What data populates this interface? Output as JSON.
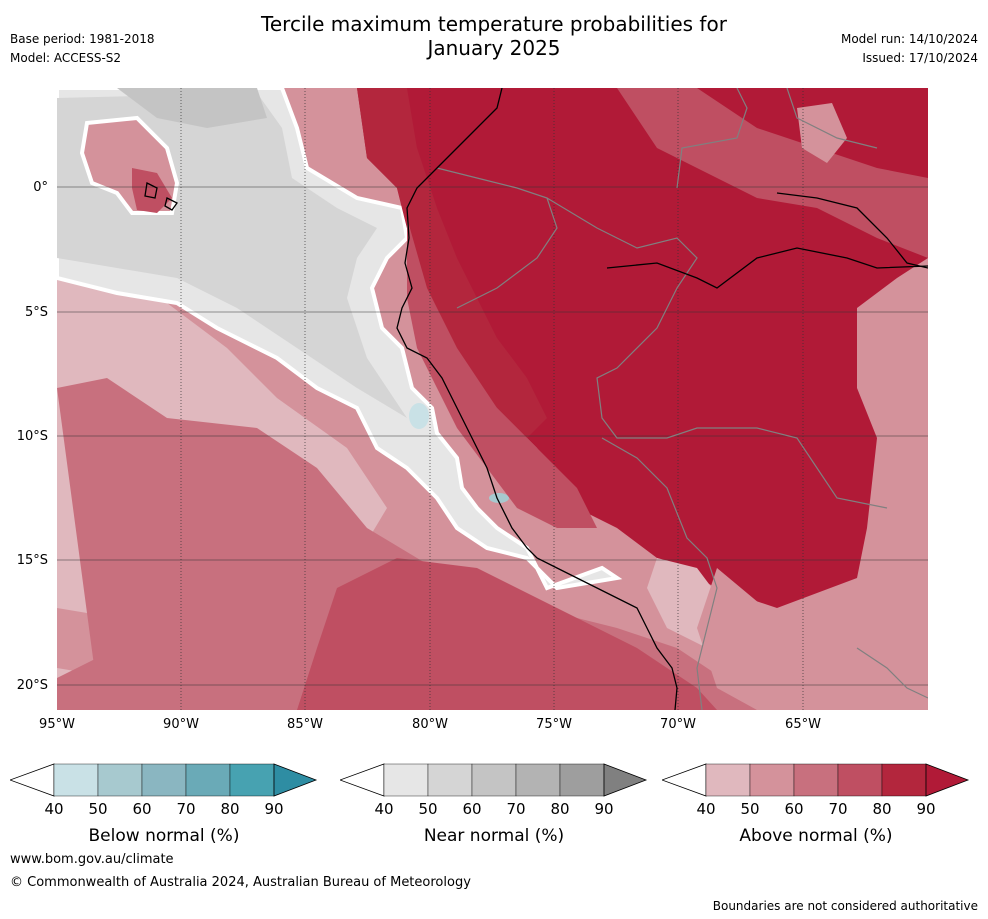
{
  "header": {
    "title_line1": "Tercile maximum temperature probabilities for",
    "title_line2": "January 2025",
    "base_period": "Base period: 1981-2018",
    "model": "Model: ACCESS-S2",
    "model_run": "Model run: 14/10/2024",
    "issued": "Issued: 17/10/2024"
  },
  "map": {
    "lat_labels": [
      "0°",
      "5°S",
      "10°S",
      "15°S",
      "20°S"
    ],
    "lon_labels": [
      "95°W",
      "90°W",
      "85°W",
      "80°W",
      "75°W",
      "70°W",
      "65°W"
    ],
    "coastline_color": "#000000",
    "border_color": "#808080"
  },
  "legends": [
    {
      "title": "Below normal (%)",
      "ticks": [
        "40",
        "50",
        "60",
        "70",
        "80",
        "90"
      ],
      "colors": [
        "#c9e1e6",
        "#a7c9cf",
        "#8ab6c1",
        "#6aaab7",
        "#47a2b1",
        "#2e8da3"
      ]
    },
    {
      "title": "Near normal (%)",
      "ticks": [
        "40",
        "50",
        "60",
        "70",
        "80",
        "90"
      ],
      "colors": [
        "#e6e6e6",
        "#d5d5d5",
        "#c4c4c4",
        "#b3b3b3",
        "#9e9e9e",
        "#808080"
      ]
    },
    {
      "title": "Above normal (%)",
      "ticks": [
        "40",
        "50",
        "60",
        "70",
        "80",
        "90"
      ],
      "colors": [
        "#e0b8be",
        "#d4929b",
        "#c8707e",
        "#bf4f62",
        "#b3263d",
        "#b11a37"
      ]
    }
  ],
  "footer": {
    "website": "www.bom.gov.au/climate",
    "copyright": "© Commonwealth of Australia 2024, Australian Bureau of Meteorology",
    "disclaimer": "Boundaries are not considered authoritative"
  }
}
